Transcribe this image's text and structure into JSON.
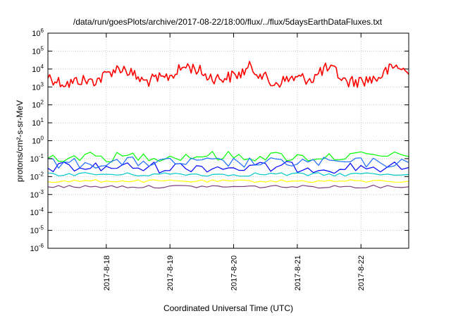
{
  "chart_data": {
    "type": "line",
    "title": "/data/run/goesPlots/archive/2017-08-22/18:00/flux/../flux/5daysEarthDataFluxes.txt",
    "xlabel": "Coordinated Universal Time (UTC)",
    "ylabel": "protons/cm²-s-sr-MeV",
    "yscale": "log",
    "ylim": [
      1e-06,
      1000000.0
    ],
    "xlim": [
      "2017-08-17 02:00",
      "2017-08-22 18:00"
    ],
    "x_ticks": [
      "2017-8-18",
      "2017-8-19",
      "2017-8-20",
      "2017-8-21",
      "2017-8-22"
    ],
    "y_ticks": [
      {
        "base": "10",
        "exp": "6"
      },
      {
        "base": "10",
        "exp": "5"
      },
      {
        "base": "10",
        "exp": "4"
      },
      {
        "base": "10",
        "exp": "3"
      },
      {
        "base": "10",
        "exp": "2"
      },
      {
        "base": "10",
        "exp": "1"
      },
      {
        "base": "10",
        "exp": "0"
      },
      {
        "base": "10",
        "exp": "-1"
      },
      {
        "base": "10",
        "exp": "-2"
      },
      {
        "base": "10",
        "exp": "-3"
      },
      {
        "base": "10",
        "exp": "-4"
      },
      {
        "base": "10",
        "exp": "-5"
      },
      {
        "base": "10",
        "exp": "-6"
      }
    ],
    "grid": true,
    "series": [
      {
        "color": "#ff0000",
        "x": [
          "2017-08-17 02:00",
          "2017-08-17 06:00",
          "2017-08-17 10:00",
          "2017-08-17 14:00",
          "2017-08-17 18:00",
          "2017-08-17 22:00",
          "2017-08-18 02:00",
          "2017-08-18 06:00",
          "2017-08-18 10:00",
          "2017-08-18 14:00",
          "2017-08-18 18:00",
          "2017-08-18 22:00",
          "2017-08-19 02:00",
          "2017-08-19 06:00",
          "2017-08-19 10:00",
          "2017-08-19 14:00",
          "2017-08-19 18:00",
          "2017-08-19 22:00",
          "2017-08-20 02:00",
          "2017-08-20 06:00",
          "2017-08-20 10:00",
          "2017-08-20 14:00",
          "2017-08-20 18:00",
          "2017-08-20 22:00",
          "2017-08-21 02:00",
          "2017-08-21 06:00",
          "2017-08-21 10:00",
          "2017-08-21 14:00",
          "2017-08-21 18:00",
          "2017-08-21 22:00",
          "2017-08-22 02:00",
          "2017-08-22 06:00",
          "2017-08-22 10:00",
          "2017-08-22 14:00",
          "2017-08-22 18:00"
        ],
        "values": [
          4000,
          2000,
          1500,
          2500,
          2000,
          3000,
          8000,
          12000,
          5000,
          2000,
          2500,
          3000,
          6000,
          15000,
          10000,
          4000,
          3000,
          3500,
          5000,
          12000,
          6000,
          1500,
          2000,
          3000,
          3000,
          3000,
          10000,
          8000,
          2000,
          2000,
          2500,
          3000,
          8000,
          15000,
          5000
        ]
      },
      {
        "color": "#00ff00",
        "x": [
          "2017-08-17 02:00",
          "2017-08-17 14:00",
          "2017-08-18 02:00",
          "2017-08-18 14:00",
          "2017-08-19 02:00",
          "2017-08-19 14:00",
          "2017-08-20 02:00",
          "2017-08-20 14:00",
          "2017-08-21 02:00",
          "2017-08-21 14:00",
          "2017-08-22 02:00",
          "2017-08-22 18:00"
        ],
        "values": [
          0.12,
          0.13,
          0.12,
          0.14,
          0.13,
          0.15,
          0.13,
          0.14,
          0.12,
          0.13,
          0.14,
          0.13
        ]
      },
      {
        "color": "#0000ff",
        "x": [
          "2017-08-17 02:00",
          "2017-08-17 14:00",
          "2017-08-18 02:00",
          "2017-08-18 14:00",
          "2017-08-19 02:00",
          "2017-08-19 14:00",
          "2017-08-20 02:00",
          "2017-08-20 14:00",
          "2017-08-21 02:00",
          "2017-08-21 14:00",
          "2017-08-22 02:00",
          "2017-08-22 18:00"
        ],
        "values": [
          0.035,
          0.03,
          0.035,
          0.032,
          0.034,
          0.036,
          0.03,
          0.033,
          0.035,
          0.031,
          0.034,
          0.032
        ]
      },
      {
        "color": "#1a6cff",
        "x": [
          "2017-08-17 02:00",
          "2017-08-17 14:00",
          "2017-08-18 02:00",
          "2017-08-18 14:00",
          "2017-08-19 02:00",
          "2017-08-19 14:00",
          "2017-08-20 02:00",
          "2017-08-20 14:00",
          "2017-08-21 02:00",
          "2017-08-21 14:00",
          "2017-08-22 02:00",
          "2017-08-22 18:00"
        ],
        "values": [
          0.06,
          0.055,
          0.06,
          0.065,
          0.058,
          0.062,
          0.06,
          0.057,
          0.063,
          0.06,
          0.059,
          0.061
        ]
      },
      {
        "color": "#00c8c8",
        "x": [
          "2017-08-17 02:00",
          "2017-08-17 14:00",
          "2017-08-18 02:00",
          "2017-08-18 14:00",
          "2017-08-19 02:00",
          "2017-08-19 14:00",
          "2017-08-20 02:00",
          "2017-08-20 14:00",
          "2017-08-21 02:00",
          "2017-08-21 14:00",
          "2017-08-22 02:00",
          "2017-08-22 18:00"
        ],
        "values": [
          0.013,
          0.014,
          0.013,
          0.013,
          0.014,
          0.013,
          0.013,
          0.014,
          0.013,
          0.013,
          0.014,
          0.013
        ]
      },
      {
        "color": "#ffff00",
        "x": [
          "2017-08-17 02:00",
          "2017-08-17 14:00",
          "2017-08-18 02:00",
          "2017-08-18 14:00",
          "2017-08-19 02:00",
          "2017-08-19 14:00",
          "2017-08-20 02:00",
          "2017-08-20 14:00",
          "2017-08-21 02:00",
          "2017-08-21 14:00",
          "2017-08-22 02:00",
          "2017-08-22 18:00"
        ],
        "values": [
          0.0055,
          0.0055,
          0.0058,
          0.0055,
          0.0056,
          0.0055,
          0.0055,
          0.0057,
          0.0055,
          0.0056,
          0.0055,
          0.0055
        ]
      },
      {
        "color": "#7f3f7f",
        "x": [
          "2017-08-17 02:00",
          "2017-08-17 14:00",
          "2017-08-18 02:00",
          "2017-08-18 14:00",
          "2017-08-19 02:00",
          "2017-08-19 14:00",
          "2017-08-20 02:00",
          "2017-08-20 14:00",
          "2017-08-21 02:00",
          "2017-08-21 14:00",
          "2017-08-22 02:00",
          "2017-08-22 18:00"
        ],
        "values": [
          0.0028,
          0.0027,
          0.0028,
          0.0027,
          0.0028,
          0.0028,
          0.0027,
          0.0028,
          0.0027,
          0.0028,
          0.0028,
          0.0027
        ]
      }
    ]
  }
}
